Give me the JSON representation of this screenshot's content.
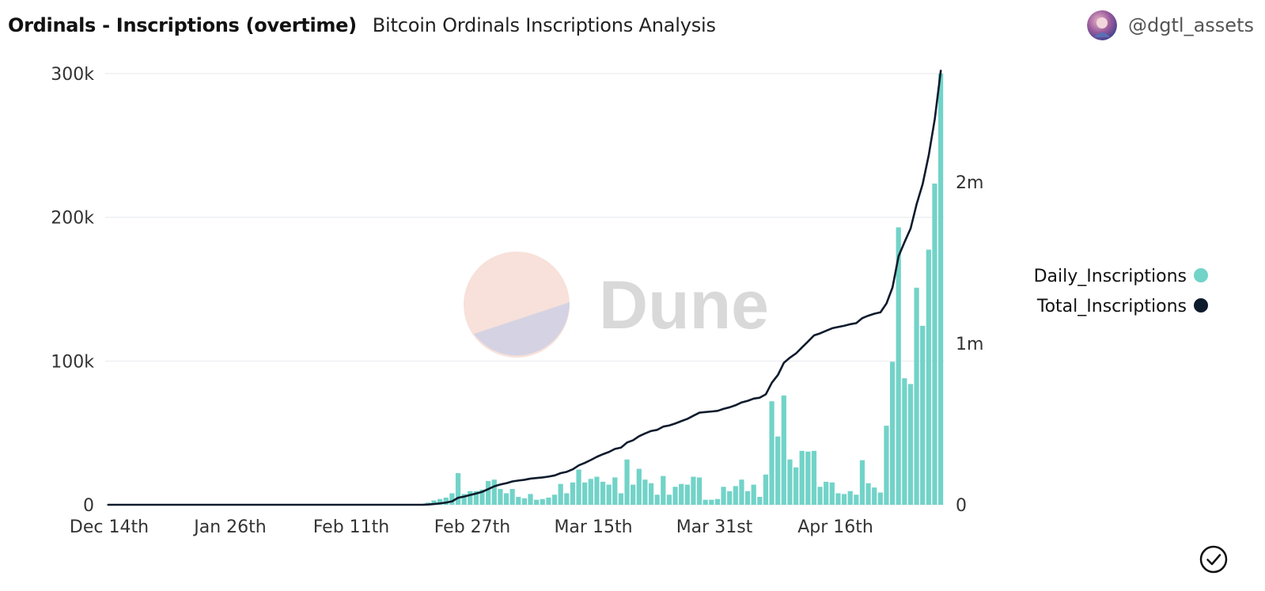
{
  "header": {
    "title": "Ordinals - Inscriptions (overtime)",
    "subtitle": "Bitcoin Ordinals Inscriptions Analysis",
    "username": "@dgtl_assets"
  },
  "watermark": {
    "text": "Dune"
  },
  "colors": {
    "bar": "#72d3c8",
    "line": "#0e1b2c",
    "grid": "#e8eaed",
    "axis_text": "#333333",
    "watermark_text": "#d9d9d9"
  },
  "icons": {
    "avatar": "avatar-icon",
    "check": "check-circle-icon",
    "logo": "dune-logo-icon"
  },
  "chart_data": {
    "type": "bar+line",
    "title": "Ordinals - Inscriptions (overtime)",
    "x_ticks": [
      "Dec 14th",
      "Jan 26th",
      "Feb 11th",
      "Feb 27th",
      "Mar 15th",
      "Mar 31st",
      "Apr 16th"
    ],
    "y_left": {
      "ticks": [
        "0",
        "100k",
        "200k",
        "300k"
      ],
      "range": [
        0,
        300000
      ]
    },
    "y_right": {
      "ticks": [
        "0",
        "1m",
        "2m"
      ],
      "range": [
        0,
        2670000
      ]
    },
    "legend_position": "right",
    "series": [
      {
        "name": "Daily_Inscriptions",
        "type": "bar",
        "axis": "left",
        "color": "#72d3c8",
        "values": [
          0,
          0,
          0,
          0,
          0,
          0,
          0,
          0,
          0,
          0,
          0,
          0,
          0,
          0,
          0,
          0,
          0,
          0,
          0,
          0,
          0,
          0,
          0,
          0,
          0,
          0,
          0,
          0,
          0,
          0,
          0,
          0,
          0,
          0,
          0,
          0,
          0,
          0,
          0,
          0,
          0,
          0,
          0,
          0,
          0,
          0,
          0,
          0,
          0,
          0,
          0,
          0,
          0,
          1500,
          3000,
          4000,
          5000,
          8000,
          22000,
          7500,
          9500,
          9500,
          10500,
          16500,
          17500,
          11000,
          8000,
          11000,
          5500,
          4500,
          7500,
          3500,
          4000,
          5000,
          7000,
          14500,
          8000,
          15500,
          24500,
          15500,
          18000,
          19500,
          16000,
          14000,
          19000,
          8000,
          31500,
          14000,
          25000,
          17500,
          15000,
          7000,
          20000,
          7000,
          12500,
          14500,
          14000,
          19500,
          19000,
          3500,
          3500,
          4000,
          12500,
          9500,
          13000,
          17500,
          9500,
          14000,
          5500,
          21000,
          72000,
          47500,
          76000,
          31500,
          26000,
          37500,
          37000,
          37500,
          12500,
          16000,
          15500,
          8000,
          7500,
          9500,
          7000,
          31000,
          15000,
          12000,
          8500,
          55000,
          99500,
          193000,
          88000,
          84000,
          151000,
          124500,
          177500,
          223500,
          300000
        ]
      },
      {
        "name": "Total_Inscriptions",
        "type": "line",
        "axis": "right",
        "color": "#0e1b2c",
        "values": [
          0,
          0,
          0,
          0,
          0,
          0,
          0,
          0,
          0,
          0,
          0,
          0,
          0,
          0,
          0,
          0,
          0,
          0,
          0,
          0,
          0,
          0,
          0,
          0,
          0,
          0,
          0,
          0,
          0,
          0,
          0,
          0,
          0,
          0,
          0,
          0,
          0,
          0,
          0,
          0,
          0,
          0,
          0,
          0,
          0,
          0,
          0,
          0,
          0,
          0,
          0,
          0,
          0,
          1500,
          4500,
          8500,
          13500,
          21500,
          43500,
          51000,
          60500,
          70000,
          80500,
          97000,
          114500,
          125500,
          133500,
          144500,
          150000,
          154500,
          162000,
          165500,
          169500,
          174500,
          181500,
          196000,
          204000,
          219500,
          244000,
          259500,
          277500,
          297000,
          313000,
          327000,
          346000,
          354000,
          385500,
          399500,
          424500,
          442000,
          457000,
          464000,
          484000,
          491000,
          503500,
          518000,
          532000,
          551500,
          570500,
          574000,
          577500,
          581500,
          594000,
          603500,
          616500,
          634000,
          643500,
          657500,
          663000,
          684000,
          756000,
          803500,
          879500,
          911000,
          937000,
          974500,
          1011500,
          1049000,
          1061500,
          1077500,
          1093000,
          1101000,
          1108500,
          1118000,
          1125000,
          1156000,
          1171000,
          1183000,
          1191500,
          1246500,
          1346000,
          1539000,
          1627000,
          1711000,
          1862000,
          1986500,
          2164000,
          2387500,
          2687500
        ]
      }
    ]
  }
}
